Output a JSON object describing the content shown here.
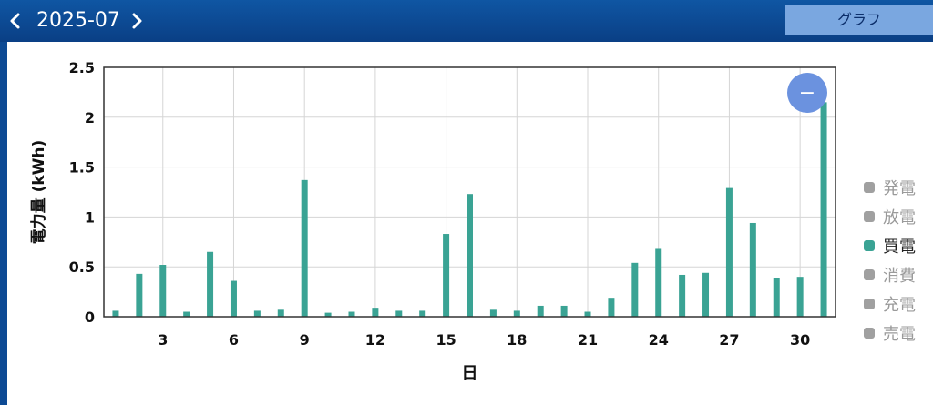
{
  "header": {
    "month": "2025-07",
    "graph_button": "グラフ"
  },
  "zoom_button": {
    "symbol": "−"
  },
  "legend": [
    {
      "label": "発電",
      "color": "#a0a0a0",
      "active": false
    },
    {
      "label": "放電",
      "color": "#a0a0a0",
      "active": false
    },
    {
      "label": "買電",
      "color": "#3aa394",
      "active": true
    },
    {
      "label": "消費",
      "color": "#a0a0a0",
      "active": false
    },
    {
      "label": "充電",
      "color": "#a0a0a0",
      "active": false
    },
    {
      "label": "売電",
      "color": "#a0a0a0",
      "active": false
    }
  ],
  "chart_data": {
    "type": "bar",
    "xlabel": "日",
    "ylabel": "電力量 (kWh)",
    "ylim": [
      0,
      2.5
    ],
    "yticks": [
      "0",
      "0.5",
      "1",
      "1.5",
      "2",
      "2.5"
    ],
    "xticks": [
      "3",
      "6",
      "9",
      "12",
      "15",
      "18",
      "21",
      "24",
      "27",
      "30"
    ],
    "grid": true,
    "categories": [
      1,
      2,
      3,
      4,
      5,
      6,
      7,
      8,
      9,
      10,
      11,
      12,
      13,
      14,
      15,
      16,
      17,
      18,
      19,
      20,
      21,
      22,
      23,
      24,
      25,
      26,
      27,
      28,
      29,
      30,
      31
    ],
    "series": [
      {
        "name": "買電",
        "color": "#3aa394",
        "values": [
          0.06,
          0.43,
          0.52,
          0.05,
          0.65,
          0.36,
          0.06,
          0.07,
          1.37,
          0.04,
          0.05,
          0.09,
          0.06,
          0.06,
          0.83,
          1.23,
          0.07,
          0.06,
          0.11,
          0.11,
          0.05,
          0.19,
          0.54,
          0.68,
          0.42,
          0.44,
          1.29,
          0.94,
          0.39,
          0.4,
          2.15
        ]
      }
    ]
  }
}
